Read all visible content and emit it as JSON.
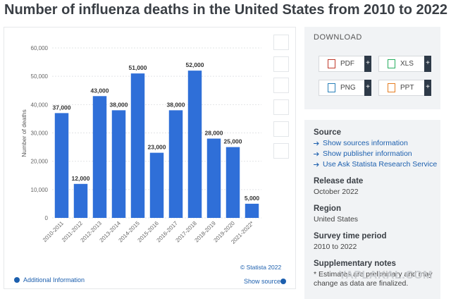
{
  "chart_data": {
    "type": "bar",
    "title": "Number of influenza deaths in the United States from 2010 to 2022",
    "y_label": "Number of deaths",
    "categories": [
      "2010-2011",
      "2011-2012",
      "2012-2013",
      "2013-2014",
      "2014-2015",
      "2015-2016",
      "2016-2017",
      "2017-2018",
      "2018-2019",
      "2019-2020",
      "2021-2022*"
    ],
    "values": [
      37000,
      12000,
      43000,
      38000,
      51000,
      23000,
      38000,
      52000,
      28000,
      25000,
      5000
    ],
    "value_labels": [
      "37,000",
      "12,000",
      "43,000",
      "38,000",
      "51,000",
      "23,000",
      "38,000",
      "52,000",
      "28,000",
      "25,000",
      "5,000"
    ],
    "color": "#2f6fd8",
    "ylim": [
      0,
      60000
    ],
    "yticks": [
      0,
      {
        "value": 10000,
        "label": "10,000"
      },
      {
        "value": 20000,
        "label": "20,000"
      },
      {
        "value": 30000,
        "label": "30,000"
      },
      {
        "value": 40000,
        "label": "40,000"
      },
      {
        "value": 50000,
        "label": "50,000"
      },
      {
        "value": 60000,
        "label": "60,000"
      }
    ],
    "grid": true
  },
  "footer": {
    "copyright": "© Statista 2022",
    "additional": "Additional Information",
    "source": "Show source"
  },
  "download": {
    "title": "DOWNLOAD",
    "buttons": [
      "PDF",
      "XLS",
      "PNG",
      "PPT"
    ],
    "plus": "+"
  },
  "info": {
    "source_title": "Source",
    "links": [
      "Show sources information",
      "Show publisher information",
      "Use Ask Statista Research Service"
    ],
    "sections": [
      {
        "title": "Release date",
        "text": "October 2022"
      },
      {
        "title": "Region",
        "text": "United States"
      },
      {
        "title": "Survey time period",
        "text": "2010 to 2022"
      },
      {
        "title": "Supplementary notes",
        "text": "* Estimates are preliminary and may change as data are finalized."
      }
    ]
  },
  "watermark": "YAPLAKAL.COM"
}
